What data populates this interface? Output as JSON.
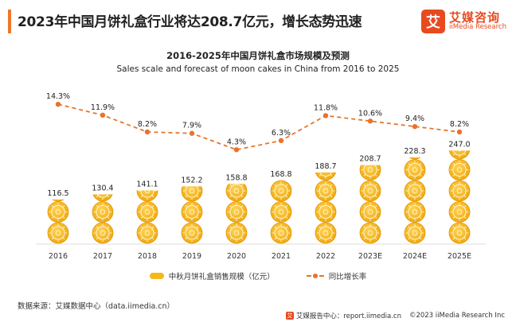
{
  "headline": "2023年中国月饼礼盒行业将达208.7亿元，增长态势迅速",
  "brand": {
    "mark": "艾",
    "name_cn": "艾媒咨询",
    "name_en": "iiMedia Research"
  },
  "chart_data": {
    "type": "bar",
    "title": "2016-2025年中国月饼礼盒市场规模及预测",
    "subtitle": "Sales scale and forecast of moon cakes in China from 2016 to 2025",
    "categories": [
      "2016",
      "2017",
      "2018",
      "2019",
      "2020",
      "2021",
      "2022",
      "2023E",
      "2024E",
      "2025E"
    ],
    "series": [
      {
        "name": "中秋月饼礼盒销售规模（亿元）",
        "kind": "pictorial-bar",
        "color": "#f5b81c",
        "values": [
          116.5,
          130.4,
          141.1,
          152.2,
          158.8,
          168.8,
          188.7,
          208.7,
          228.3,
          247.0
        ],
        "labels": [
          "116.5",
          "130.4",
          "141.1",
          "152.2",
          "158.8",
          "168.8",
          "188.7",
          "208.7",
          "228.3",
          "247.0"
        ]
      },
      {
        "name": "同比增长率",
        "kind": "line",
        "color": "#e8742a",
        "dashed": true,
        "values": [
          14.3,
          11.9,
          8.2,
          7.9,
          4.3,
          6.3,
          11.8,
          10.6,
          9.4,
          8.2
        ],
        "labels": [
          "14.3%",
          "11.9%",
          "8.2%",
          "7.9%",
          "4.3%",
          "6.3%",
          "11.8%",
          "10.6%",
          "9.4%",
          "8.2%"
        ]
      }
    ],
    "legend_position": "bottom-center"
  },
  "source": "数据来源：艾媒数据中心（data.iimedia.cn）",
  "footer": {
    "icon": "艾",
    "center": "艾媒报告中心：report.iimedia.cn",
    "copyright": "©2023  iiMedia Research  Inc"
  }
}
